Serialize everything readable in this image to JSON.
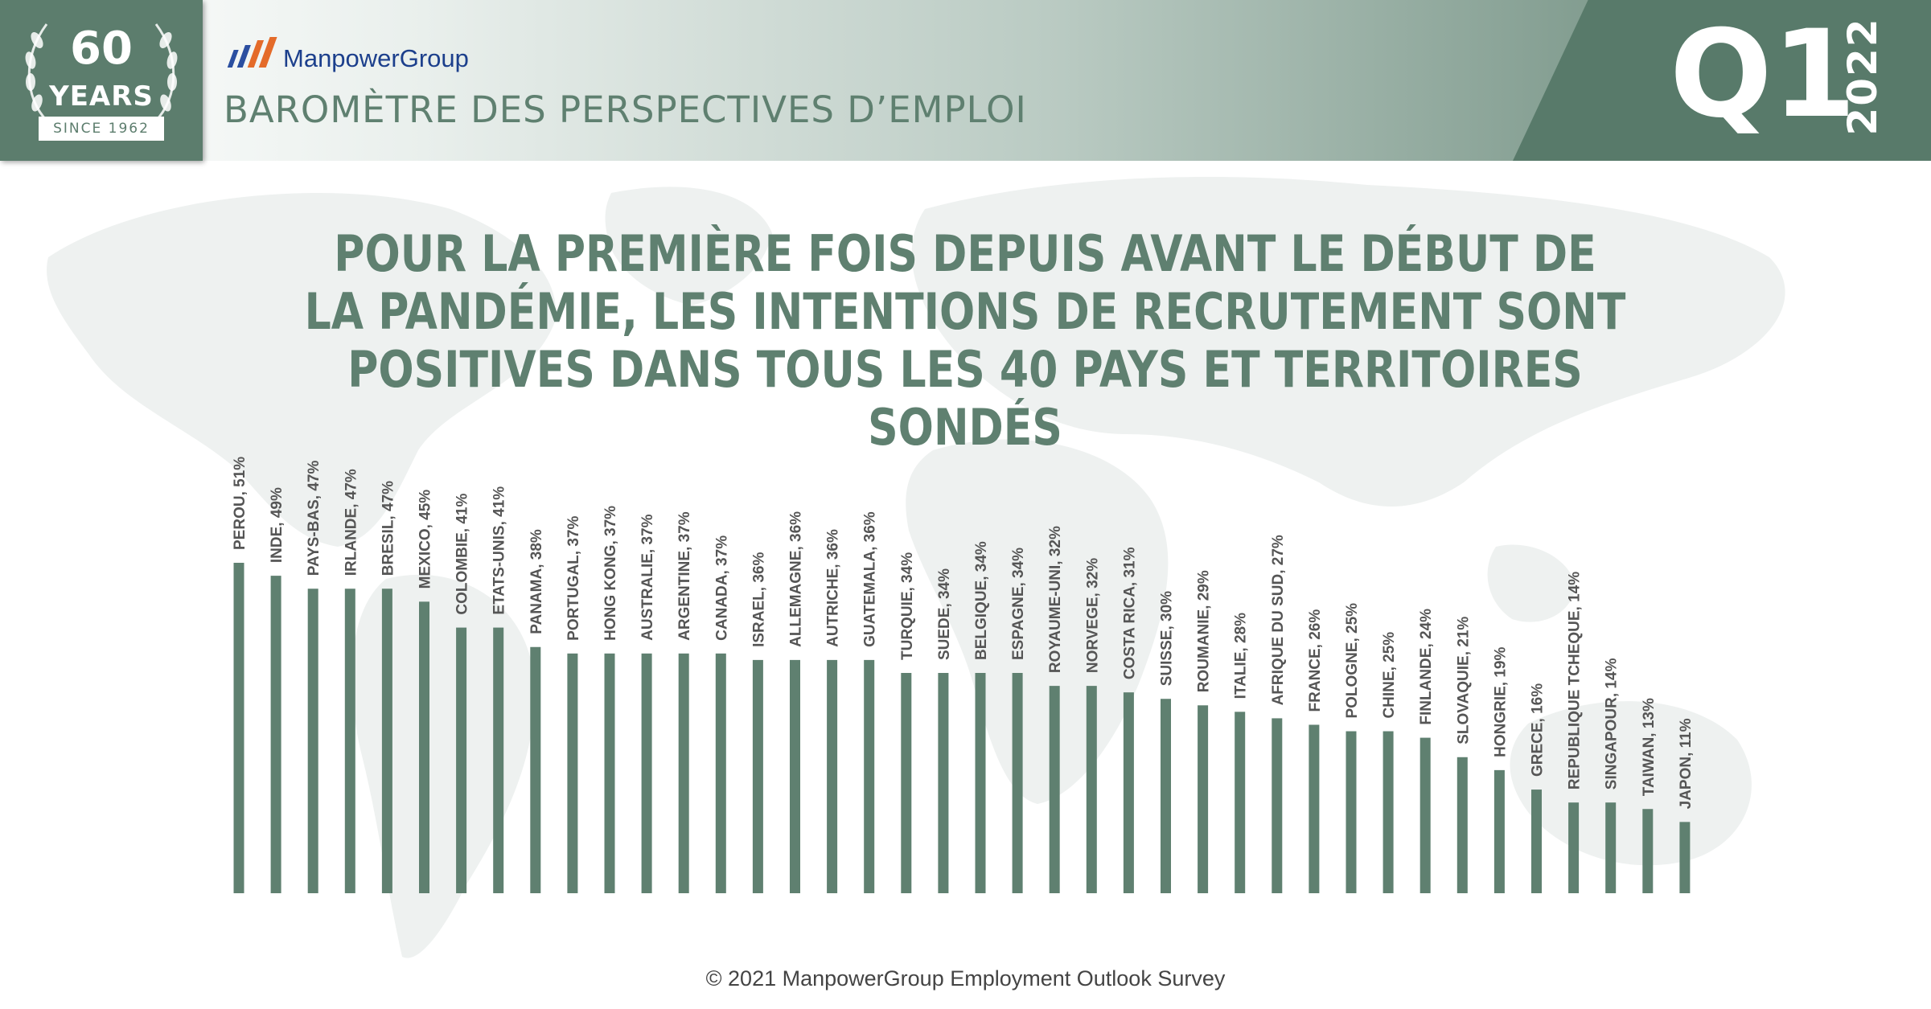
{
  "header": {
    "badge_number": "60",
    "badge_years": "YEARS",
    "badge_since": "SINCE 1962",
    "brand": "ManpowerGroup",
    "subtitle": "BAROMÈTRE DES PERSPECTIVES D’EMPLOI",
    "quarter": "Q1",
    "year": "2022"
  },
  "headline": "POUR LA PREMIÈRE FOIS DEPUIS AVANT LE DÉBUT DE LA PANDÉMIE, LES INTENTIONS DE RECRUTEMENT SONT POSITIVES DANS TOUS LES 40 PAYS ET TERRITOIRES SONDÉS",
  "footer": {
    "copyright": "© 2021 ManpowerGroup Employment Outlook Survey"
  },
  "colors": {
    "bar": "#5f8070",
    "header_dark": "#587a6a",
    "text_green": "#5f8070",
    "map": "#eef1f0"
  },
  "chart_data": {
    "type": "bar",
    "unit": "%",
    "ylim": [
      0,
      51
    ],
    "grid": false,
    "categories": [
      "PEROU",
      "INDE",
      "PAYS-BAS",
      "IRLANDE",
      "BRESIL",
      "MEXICO",
      "COLOMBIE",
      "ETATS-UNIS",
      "PANAMA",
      "PORTUGAL",
      "HONG KONG",
      "AUSTRALIE",
      "ARGENTINE",
      "CANADA",
      "ISRAEL",
      "ALLEMAGNE",
      "AUTRICHE",
      "GUATEMALA",
      "TURQUIE",
      "SUEDE",
      "BELGIQUE",
      "ESPAGNE",
      "ROYAUME-UNI",
      "NORVEGE",
      "COSTA RICA",
      "SUISSE",
      "ROUMANIE",
      "ITALIE",
      "AFRIQUE DU SUD",
      "FRANCE",
      "POLOGNE",
      "CHINE",
      "FINLANDE",
      "SLOVAQUIE",
      "HONGRIE",
      "GRECE",
      "REPUBLIQUE TCHEQUE",
      "SINGAPOUR",
      "TAIWAN",
      "JAPON"
    ],
    "values": [
      51,
      49,
      47,
      47,
      47,
      45,
      41,
      41,
      38,
      37,
      37,
      37,
      37,
      37,
      36,
      36,
      36,
      36,
      34,
      34,
      34,
      34,
      32,
      32,
      31,
      30,
      29,
      28,
      27,
      26,
      25,
      25,
      24,
      21,
      19,
      16,
      14,
      14,
      13,
      11
    ],
    "labels": [
      "PEROU, 51%",
      "INDE, 49%",
      "PAYS-BAS, 47%",
      "IRLANDE, 47%",
      "BRESIL, 47%",
      "MEXICO, 45%",
      "COLOMBIE, 41%",
      "ETATS-UNIS, 41%",
      "PANAMA, 38%",
      "PORTUGAL, 37%",
      "HONG KONG, 37%",
      "AUSTRALIE, 37%",
      "ARGENTINE, 37%",
      "CANADA, 37%",
      "ISRAEL, 36%",
      "ALLEMAGNE, 36%",
      "AUTRICHE, 36%",
      "GUATEMALA, 36%",
      "TURQUIE, 34%",
      "SUEDE, 34%",
      "BELGIQUE, 34%",
      "ESPAGNE, 34%",
      "ROYAUME-UNI, 32%",
      "NORVEGE, 32%",
      "COSTA RICA, 31%",
      "SUISSE, 30%",
      "ROUMANIE, 29%",
      "ITALIE, 28%",
      "AFRIQUE DU SUD, 27%",
      "FRANCE, 26%",
      "POLOGNE, 25%",
      "CHINE, 25%",
      "FINLANDE, 24%",
      "SLOVAQUIE, 21%",
      "HONGRIE, 19%",
      "GRECE, 16%",
      "REPUBLIQUE TCHEQUE, 14%",
      "SINGAPOUR, 14%",
      "TAIWAN, 13%",
      "JAPON, 11%"
    ]
  }
}
